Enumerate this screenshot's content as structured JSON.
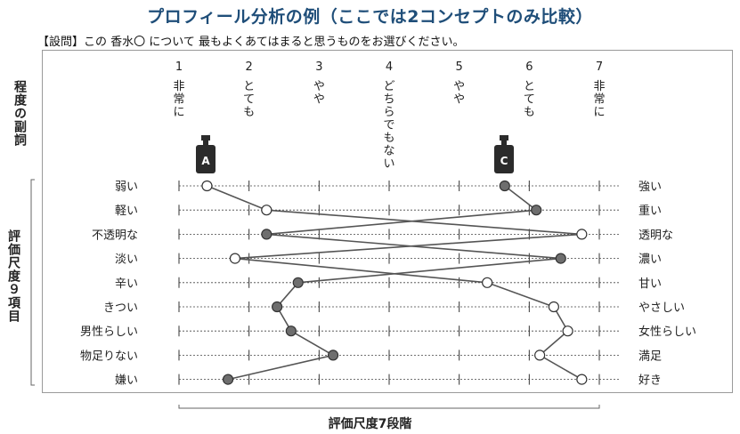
{
  "title": "プロフィール分析の例（ここでは2コンセプトのみ比較）",
  "question": "【設問】この 香水〇 について 最もよくあてはまると思うものをお選びください。",
  "left_label_top": "程度の副詞",
  "left_label_items": "評価尺度９項目",
  "bottom_label": "評価尺度7段階",
  "chart_data": {
    "type": "line",
    "scale_points": [
      1,
      2,
      3,
      4,
      5,
      6,
      7
    ],
    "scale_labels": [
      "非常に",
      "とても",
      "やや",
      "どちらでもない",
      "やや",
      "とても",
      "非常に"
    ],
    "left_items": [
      "弱い",
      "軽い",
      "不透明な",
      "淡い",
      "辛い",
      "きつい",
      "男性らしい",
      "物足りない",
      "嫌い"
    ],
    "right_items": [
      "強い",
      "重い",
      "透明な",
      "濃い",
      "甘い",
      "やさしい",
      "女性らしい",
      "満足",
      "好き"
    ],
    "xlim": [
      1,
      7
    ],
    "series": [
      {
        "name": "A",
        "marker": "open",
        "values": [
          1.4,
          2.25,
          6.75,
          1.8,
          5.4,
          6.35,
          6.55,
          6.15,
          6.75
        ]
      },
      {
        "name": "C",
        "marker": "filled",
        "values": [
          5.65,
          6.1,
          2.25,
          6.45,
          2.7,
          2.4,
          2.6,
          3.2,
          1.7
        ]
      }
    ],
    "colors": {
      "line": "#555555",
      "filled_marker": "#6e6e6e",
      "grid": "#444444",
      "bottle": "#2b2b2b"
    }
  }
}
